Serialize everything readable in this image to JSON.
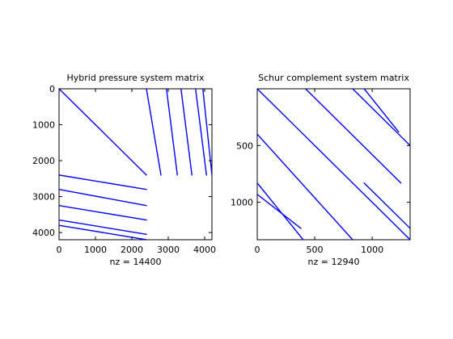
{
  "chart_data": [
    {
      "type": "scatter",
      "title": "Hybrid pressure system matrix",
      "xlabel": "nz = 14400",
      "ylabel": "",
      "xlim": [
        0,
        4200
      ],
      "ylim": [
        0,
        4200
      ],
      "y_reversed": true,
      "xticks": [
        0,
        1000,
        2000,
        3000,
        4000
      ],
      "yticks": [
        0,
        1000,
        2000,
        3000,
        4000
      ],
      "grid": false,
      "color": "#0000ff",
      "segments": [
        {
          "x1": 0,
          "y1": 0,
          "x2": 2400,
          "y2": 2400
        },
        {
          "x1": 2400,
          "y1": 0,
          "x2": 2800,
          "y2": 2400
        },
        {
          "x1": 2950,
          "y1": 0,
          "x2": 3250,
          "y2": 2400
        },
        {
          "x1": 3350,
          "y1": 0,
          "x2": 3650,
          "y2": 2400
        },
        {
          "x1": 3750,
          "y1": 0,
          "x2": 4050,
          "y2": 2400
        },
        {
          "x1": 3950,
          "y1": 0,
          "x2": 4200,
          "y2": 2400
        },
        {
          "x1": 0,
          "y1": 2400,
          "x2": 2400,
          "y2": 2800
        },
        {
          "x1": 0,
          "y1": 2800,
          "x2": 2400,
          "y2": 3250
        },
        {
          "x1": 0,
          "y1": 3250,
          "x2": 2400,
          "y2": 3650
        },
        {
          "x1": 0,
          "y1": 3650,
          "x2": 2400,
          "y2": 4050
        },
        {
          "x1": 0,
          "y1": 3800,
          "x2": 2400,
          "y2": 4200
        }
      ]
    },
    {
      "type": "scatter",
      "title": "Schur complement system matrix",
      "xlabel": "nz = 12940",
      "ylabel": "",
      "xlim": [
        0,
        1330
      ],
      "ylim": [
        0,
        1330
      ],
      "y_reversed": true,
      "xticks": [
        0,
        500,
        1000
      ],
      "yticks": [
        500,
        1000
      ],
      "grid": false,
      "color": "#0000ff",
      "segments": [
        {
          "x1": 0,
          "y1": 0,
          "x2": 830,
          "y2": 830
        },
        {
          "x1": 420,
          "y1": 0,
          "x2": 1250,
          "y2": 830
        },
        {
          "x1": 830,
          "y1": 0,
          "x2": 1330,
          "y2": 500
        },
        {
          "x1": 930,
          "y1": 0,
          "x2": 1230,
          "y2": 380
        },
        {
          "x1": 0,
          "y1": 400,
          "x2": 830,
          "y2": 1330
        },
        {
          "x1": 0,
          "y1": 830,
          "x2": 400,
          "y2": 1330
        },
        {
          "x1": 0,
          "y1": 930,
          "x2": 380,
          "y2": 1230
        },
        {
          "x1": 830,
          "y1": 830,
          "x2": 1330,
          "y2": 1330
        },
        {
          "x1": 930,
          "y1": 830,
          "x2": 1330,
          "y2": 1230
        }
      ]
    }
  ]
}
